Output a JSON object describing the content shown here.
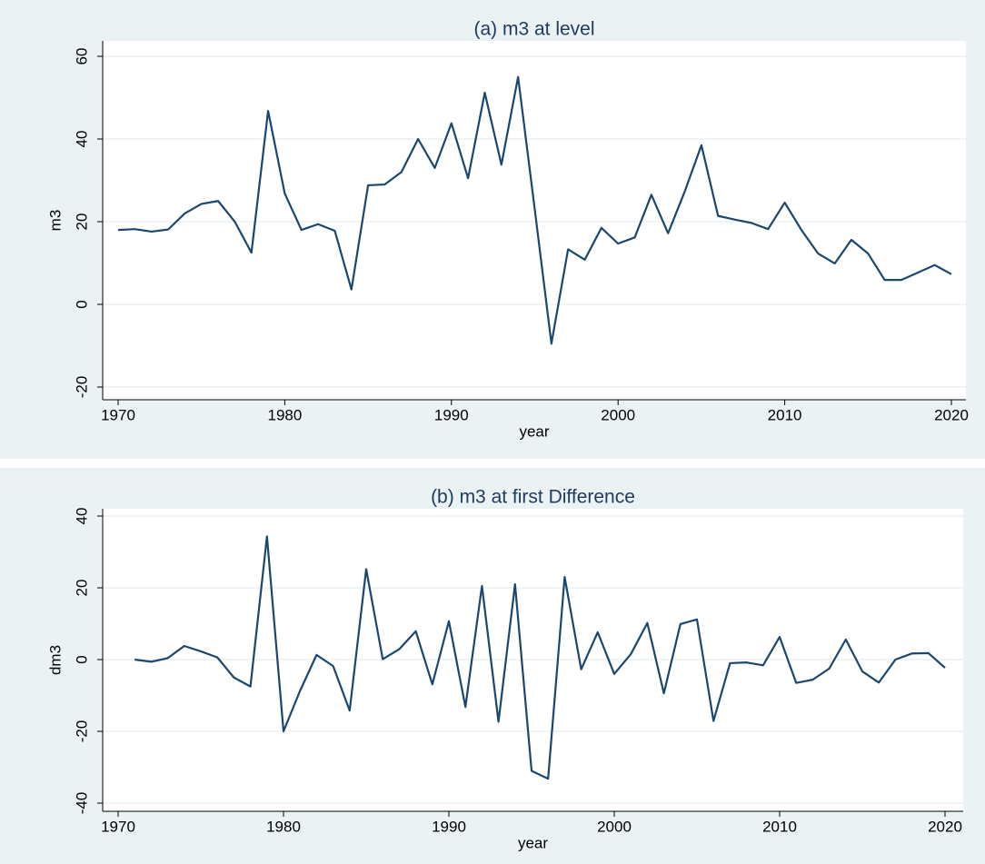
{
  "chart_data": [
    {
      "type": "line",
      "title": "(a) m3 at level",
      "xlabel": "year",
      "ylabel": "m3",
      "color": "#1a476f",
      "grid": true,
      "x": [
        1970,
        1971,
        1972,
        1973,
        1974,
        1975,
        1976,
        1977,
        1978,
        1979,
        1980,
        1981,
        1982,
        1983,
        1984,
        1985,
        1986,
        1987,
        1988,
        1989,
        1990,
        1991,
        1992,
        1993,
        1994,
        1995,
        1996,
        1997,
        1998,
        1999,
        2000,
        2001,
        2002,
        2003,
        2004,
        2005,
        2006,
        2007,
        2008,
        2009,
        2010,
        2011,
        2012,
        2013,
        2014,
        2015,
        2016,
        2017,
        2018,
        2019,
        2020
      ],
      "values": [
        18,
        18.2,
        17.6,
        18.1,
        22,
        24.3,
        25,
        20,
        12.5,
        46.8,
        26.8,
        18,
        19.4,
        17.8,
        3.6,
        28.8,
        29,
        32,
        40,
        33,
        43.8,
        30.5,
        51.2,
        33.8,
        55,
        23,
        -9.5,
        13.3,
        10.8,
        18.5,
        14.7,
        16.2,
        26.5,
        17.2,
        27.3,
        38.5,
        21.4,
        20.5,
        19.7,
        18.2,
        24.6,
        18,
        12.3,
        9.9,
        15.6,
        12.3,
        5.9,
        5.9,
        7.7,
        9.5,
        7.3
      ],
      "xlim": [
        1970,
        2020
      ],
      "xticks": [
        1970,
        1980,
        1990,
        2000,
        2010,
        2020
      ],
      "ylim": [
        -20,
        60
      ],
      "yticks": [
        -20,
        0,
        20,
        40,
        60
      ]
    },
    {
      "type": "line",
      "title": "(b) m3 at first Difference",
      "xlabel": "year",
      "ylabel": "dm3",
      "color": "#1a476f",
      "grid": true,
      "x": [
        1971,
        1972,
        1973,
        1974,
        1975,
        1976,
        1977,
        1978,
        1979,
        1980,
        1981,
        1982,
        1983,
        1984,
        1985,
        1986,
        1987,
        1988,
        1989,
        1990,
        1991,
        1992,
        1993,
        1994,
        1995,
        1996,
        1997,
        1998,
        1999,
        2000,
        2001,
        2002,
        2003,
        2004,
        2005,
        2006,
        2007,
        2008,
        2009,
        2010,
        2011,
        2012,
        2013,
        2014,
        2015,
        2016,
        2017,
        2018,
        2019,
        2020
      ],
      "values": [
        0,
        -0.6,
        0.4,
        3.8,
        2.3,
        0.6,
        -5,
        -7.5,
        34.3,
        -20,
        -8.7,
        1.3,
        -1.8,
        -14.2,
        25.2,
        0.1,
        2.9,
        7.9,
        -6.9,
        10.7,
        -13.2,
        20.5,
        -17.3,
        21,
        -31,
        -33.2,
        23,
        -2.7,
        7.6,
        -4,
        1.5,
        10.2,
        -9.4,
        9.9,
        11.2,
        -17.1,
        -1,
        -0.8,
        -1.6,
        6.3,
        -6.5,
        -5.6,
        -2.5,
        5.6,
        -3.3,
        -6.4,
        0,
        1.7,
        1.8,
        -2.3
      ],
      "xlim": [
        1970,
        2020
      ],
      "xticks": [
        1970,
        1980,
        1990,
        2000,
        2010,
        2020
      ],
      "ylim": [
        -40,
        40
      ],
      "yticks": [
        -40,
        -20,
        0,
        20,
        40
      ]
    }
  ]
}
